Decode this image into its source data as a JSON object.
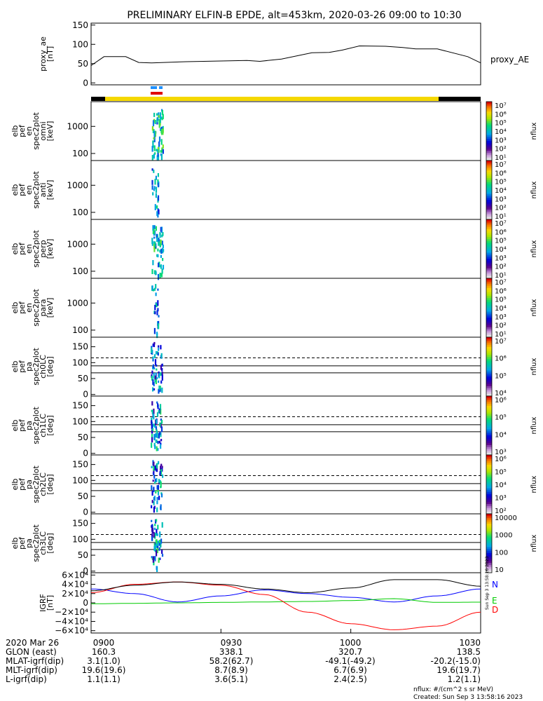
{
  "title": "PRELIMINARY ELFIN-B EPDE, alt=453km, 2020-03-26 09:00 to 10:30",
  "chart_data": [
    {
      "id": "proxy_ae",
      "type": "line",
      "ylabel": [
        "proxy_ae",
        "[nT]"
      ],
      "legend": "proxy_AE",
      "ylim": [
        -5,
        155
      ],
      "yticks": [
        0,
        50,
        100,
        150
      ],
      "x_minutes": [
        0,
        3,
        8,
        11,
        14,
        22,
        36,
        39,
        44,
        51,
        55,
        58,
        62,
        68,
        72,
        75,
        80,
        87,
        90
      ],
      "values": [
        45,
        68,
        68,
        53,
        52,
        55,
        58,
        56,
        62,
        78,
        79,
        85,
        96,
        95,
        92,
        88,
        88,
        68,
        52
      ]
    },
    {
      "id": "omni",
      "type": "heatmap",
      "ylabel": [
        "elb",
        "pef",
        "en",
        "spec2plot",
        "omni",
        "[keV]"
      ],
      "yscale": "log",
      "yticks": [
        "1000",
        "100"
      ],
      "colorbar": {
        "label": "nflux",
        "ticks": [
          "10⁷",
          "10⁶",
          "10⁵",
          "10⁴",
          "10³",
          "10²",
          "10¹"
        ]
      }
    },
    {
      "id": "anti",
      "type": "heatmap",
      "ylabel": [
        "elb",
        "pef",
        "en",
        "spec2plot",
        "anti",
        "[keV]"
      ],
      "yscale": "log",
      "yticks": [
        "1000",
        "100"
      ],
      "colorbar": {
        "label": "nflux",
        "ticks": [
          "10⁷",
          "10⁶",
          "10⁵",
          "10⁴",
          "10³",
          "10²",
          "10¹"
        ]
      }
    },
    {
      "id": "perp",
      "type": "heatmap",
      "ylabel": [
        "elb",
        "pef",
        "en",
        "spec2plot",
        "perp",
        "[keV]"
      ],
      "yscale": "log",
      "yticks": [
        "1000",
        "100"
      ],
      "colorbar": {
        "label": "nflux",
        "ticks": [
          "10⁷",
          "10⁶",
          "10⁵",
          "10⁴",
          "10³",
          "10²",
          "10¹"
        ]
      }
    },
    {
      "id": "para",
      "type": "heatmap",
      "ylabel": [
        "elb",
        "pef",
        "en",
        "spec2plot",
        "para",
        "[keV]"
      ],
      "yscale": "log",
      "yticks": [
        "1000",
        "100"
      ],
      "colorbar": {
        "label": "nflux",
        "ticks": [
          "10⁷",
          "10⁶",
          "10⁵",
          "10⁴",
          "10³",
          "10²",
          "10¹"
        ]
      }
    },
    {
      "id": "ch0LC",
      "type": "heatmap",
      "ylabel": [
        "elb",
        "pef",
        "pa",
        "spec2plot",
        "ch0LC",
        "[deg]"
      ],
      "ylim": [
        -5,
        180
      ],
      "yticks": [
        0,
        50,
        100,
        150
      ],
      "colorbar": {
        "label": "nflux",
        "ticks": [
          "10⁷",
          "10⁶",
          "10⁵",
          "10⁴"
        ]
      }
    },
    {
      "id": "ch1LC",
      "type": "heatmap",
      "ylabel": [
        "elb",
        "pef",
        "pa",
        "spec2plot",
        "ch1LC",
        "[deg]"
      ],
      "ylim": [
        -5,
        180
      ],
      "yticks": [
        0,
        50,
        100,
        150
      ],
      "colorbar": {
        "label": "nflux",
        "ticks": [
          "10⁶",
          "10⁵",
          "10⁴",
          "10³"
        ]
      }
    },
    {
      "id": "ch2LC",
      "type": "heatmap",
      "ylabel": [
        "elb",
        "pef",
        "pa",
        "spec2plot",
        "ch2LC",
        "[deg]"
      ],
      "ylim": [
        -5,
        180
      ],
      "yticks": [
        0,
        50,
        100,
        150
      ],
      "colorbar": {
        "label": "nflux",
        "ticks": [
          "10⁶",
          "10⁵",
          "10⁴",
          "10³",
          "10²"
        ]
      }
    },
    {
      "id": "ch3LC",
      "type": "heatmap",
      "ylabel": [
        "elb",
        "pef",
        "pa",
        "spec2plot",
        "ch3LC",
        "[deg]"
      ],
      "ylim": [
        -5,
        180
      ],
      "yticks": [
        0,
        50,
        100,
        150
      ],
      "colorbar": {
        "label": "nflux",
        "ticks": [
          "10000",
          "1000",
          "100",
          "10"
        ]
      }
    },
    {
      "id": "igrf",
      "type": "line",
      "ylabel": [
        "IGRF",
        "[nT]"
      ],
      "ylim": [
        -65000,
        65000
      ],
      "ytick_labels": [
        "6×10⁴",
        "4×10⁴",
        "2×10⁴",
        "0",
        "−2×10⁴",
        "−4×10⁴",
        "−6×10⁴"
      ],
      "yticks": [
        60000,
        40000,
        20000,
        0,
        -20000,
        -40000,
        -60000
      ],
      "x_minutes": [
        0,
        10,
        20,
        30,
        40,
        50,
        60,
        70,
        80,
        90
      ],
      "series": [
        {
          "name": "N",
          "color": "#0000ff",
          "values": [
            30000,
            20000,
            2000,
            15000,
            28000,
            20000,
            12000,
            2000,
            15000,
            30000
          ]
        },
        {
          "name": "E",
          "color": "#00cc00",
          "values": [
            -2000,
            -1000,
            0,
            1000,
            2000,
            3000,
            5000,
            9000,
            1000,
            1500
          ]
        },
        {
          "name": "D",
          "color": "#ff0000",
          "values": [
            22000,
            40000,
            45000,
            38000,
            18000,
            -20000,
            -45000,
            -58000,
            -50000,
            -20000
          ]
        },
        {
          "name": "",
          "color": "#000000",
          "values": [
            26000,
            38000,
            45000,
            40000,
            30000,
            22000,
            32000,
            50000,
            50000,
            36000
          ]
        }
      ]
    }
  ],
  "xaxis": {
    "rows": [
      {
        "label": "2020 Mar 26",
        "values": [
          "0900",
          "0930",
          "1000",
          "1030"
        ]
      },
      {
        "label": "GLON (east)",
        "values": [
          "160.3",
          "338.1",
          "320.7",
          "138.5"
        ]
      },
      {
        "label": "MLAT-igrf(dip)",
        "values": [
          "3.1(1.0)",
          "58.2(62.7)",
          "-49.1(-49.2)",
          "-20.2(-15.0)"
        ]
      },
      {
        "label": "MLT-igrf(dip)",
        "values": [
          "19.6(19.6)",
          "8.7(8.9)",
          "6.7(6.9)",
          "19.6(19.7)"
        ]
      },
      {
        "label": "L-igrf(dip)",
        "values": [
          "1.1(1.1)",
          "3.6(5.1)",
          "2.4(2.5)",
          "1.2(1.1)"
        ]
      }
    ]
  },
  "footer": {
    "units": "nflux: #/(cm^2 s sr MeV)",
    "created": "Created: Sun Sep  3 13:58:16 2023",
    "side_stamp": "Sun Sep  3 13:58:16 2023"
  }
}
